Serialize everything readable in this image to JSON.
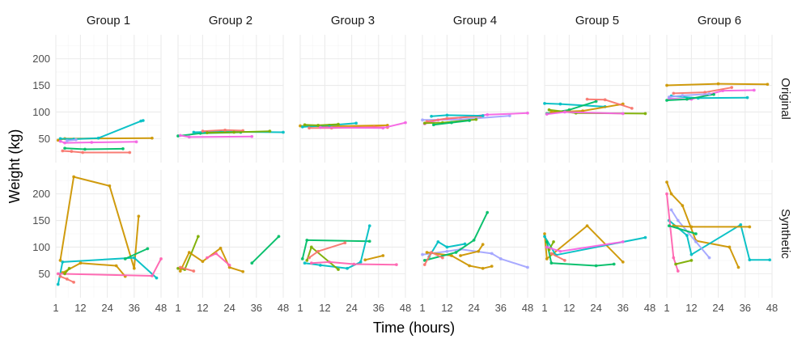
{
  "chart_data": {
    "type": "line",
    "title": "",
    "xlabel": "Time (hours)",
    "ylabel": "Weight (kg)",
    "x_ticks": [
      1,
      12,
      24,
      36,
      48
    ],
    "x_tick_labels": [
      "1",
      "12",
      "24",
      "36",
      "48"
    ],
    "xlim": [
      1,
      48
    ],
    "y_ticks": [
      50,
      100,
      150,
      200
    ],
    "y_tick_labels": [
      "50",
      "100",
      "150",
      "200"
    ],
    "ylim": [
      5,
      245
    ],
    "columns": [
      "Group 1",
      "Group 2",
      "Group 3",
      "Group 4",
      "Group 5",
      "Group 6"
    ],
    "rows": [
      "Original",
      "Synthetic"
    ],
    "series_colors": [
      "#f8766d",
      "#cd9600",
      "#7cae00",
      "#00be67",
      "#00bfc4",
      "#a3a5ff",
      "#f564e3",
      "#ff64b0"
    ],
    "panels": [
      {
        "row": "Original",
        "column": "Group 1",
        "series": [
          {
            "x": [
              2,
              5,
              44
            ],
            "y": [
              47,
              50,
              51
            ],
            "color": 1
          },
          {
            "x": [
              3,
              9,
              20,
              39,
              40
            ],
            "y": [
              50,
              49,
              51,
              83,
              84
            ],
            "color": 4
          },
          {
            "x": [
              4,
              8,
              13,
              34
            ],
            "y": [
              27,
              26,
              24,
              24
            ],
            "color": 0
          },
          {
            "x": [
              5,
              14,
              31
            ],
            "y": [
              32,
              30,
              31
            ],
            "color": 3
          },
          {
            "x": [
              3,
              5,
              17,
              37
            ],
            "y": [
              45,
              42,
              43,
              44
            ],
            "color": 6
          },
          {
            "x": [
              6,
              10
            ],
            "y": [
              46,
              48
            ],
            "color": 5
          }
        ]
      },
      {
        "row": "Original",
        "column": "Group 2",
        "series": [
          {
            "x": [
              1,
              11,
              29
            ],
            "y": [
              55,
              60,
              62
            ],
            "color": 3
          },
          {
            "x": [
              2,
              6,
              34
            ],
            "y": [
              56,
              53,
              54
            ],
            "color": 6
          },
          {
            "x": [
              8,
              20,
              48
            ],
            "y": [
              62,
              63,
              62
            ],
            "color": 4
          },
          {
            "x": [
              12,
              22,
              30
            ],
            "y": [
              64,
              66,
              65
            ],
            "color": 0
          },
          {
            "x": [
              14,
              26,
              42
            ],
            "y": [
              61,
              62,
              64
            ],
            "color": 2
          }
        ]
      },
      {
        "row": "Original",
        "column": "Group 3",
        "series": [
          {
            "x": [
              1,
              12,
              40
            ],
            "y": [
              74,
              73,
              75
            ],
            "color": 1
          },
          {
            "x": [
              2,
              14,
              26
            ],
            "y": [
              72,
              75,
              79
            ],
            "color": 4
          },
          {
            "x": [
              3,
              9,
              18
            ],
            "y": [
              76,
              75,
              77
            ],
            "color": 2
          },
          {
            "x": [
              5,
              15,
              34,
              40
            ],
            "y": [
              70,
              70,
              72,
              71
            ],
            "color": 0
          },
          {
            "x": [
              10,
              38,
              48
            ],
            "y": [
              71,
              70,
              80
            ],
            "color": 6
          }
        ]
      },
      {
        "row": "Original",
        "column": "Group 4",
        "series": [
          {
            "x": [
              1,
              18,
              40
            ],
            "y": [
              85,
              86,
              93
            ],
            "color": 5
          },
          {
            "x": [
              2,
              8,
              30,
              48
            ],
            "y": [
              78,
              85,
              95,
              98
            ],
            "color": 6
          },
          {
            "x": [
              3,
              12,
              27
            ],
            "y": [
              82,
              88,
              92
            ],
            "color": 0
          },
          {
            "x": [
              2,
              10,
              25
            ],
            "y": [
              79,
              80,
              86
            ],
            "color": 2
          },
          {
            "x": [
              5,
              12,
              28
            ],
            "y": [
              92,
              94,
              93
            ],
            "color": 4
          },
          {
            "x": [
              6,
              14,
              22
            ],
            "y": [
              76,
              80,
              84
            ],
            "color": 3
          }
        ]
      },
      {
        "row": "Original",
        "column": "Group 5",
        "series": [
          {
            "x": [
              1,
              8,
              28
            ],
            "y": [
              116,
              115,
              110
            ],
            "color": 4
          },
          {
            "x": [
              2,
              12,
              24
            ],
            "y": [
              97,
              104,
              120
            ],
            "color": 3
          },
          {
            "x": [
              4,
              18,
              36
            ],
            "y": [
              100,
              102,
              115
            ],
            "color": 1
          },
          {
            "x": [
              3,
              15,
              46
            ],
            "y": [
              104,
              98,
              97
            ],
            "color": 2
          },
          {
            "x": [
              20,
              28,
              40
            ],
            "y": [
              124,
              123,
              107
            ],
            "color": 0
          },
          {
            "x": [
              2,
              10,
              36
            ],
            "y": [
              96,
              100,
              97
            ],
            "color": 6
          }
        ]
      },
      {
        "row": "Original",
        "column": "Group 6",
        "series": [
          {
            "x": [
              1,
              24,
              46
            ],
            "y": [
              150,
              153,
              152
            ],
            "color": 1
          },
          {
            "x": [
              2,
              12,
              26,
              40
            ],
            "y": [
              125,
              124,
              140,
              141
            ],
            "color": 6
          },
          {
            "x": [
              3,
              15,
              37
            ],
            "y": [
              130,
              126,
              127
            ],
            "color": 4
          },
          {
            "x": [
              1,
              10,
              22
            ],
            "y": [
              122,
              124,
              133
            ],
            "color": 3
          },
          {
            "x": [
              4,
              18,
              30
            ],
            "y": [
              135,
              137,
              146
            ],
            "color": 0
          },
          {
            "x": [
              2,
              8,
              20
            ],
            "y": [
              128,
              131,
              134
            ],
            "color": 5
          }
        ]
      },
      {
        "row": "Synthetic",
        "column": "Group 1",
        "series": [
          {
            "x": [
              3,
              9,
              25,
              36,
              38
            ],
            "y": [
              75,
              232,
              215,
              60,
              158
            ],
            "color": 1
          },
          {
            "x": [
              2,
              4,
              36,
              46
            ],
            "y": [
              30,
              72,
              80,
              42
            ],
            "color": 4
          },
          {
            "x": [
              4,
              12,
              28,
              32
            ],
            "y": [
              52,
              70,
              65,
              45
            ],
            "color": 1
          },
          {
            "x": [
              3,
              6,
              9
            ],
            "y": [
              45,
              40,
              34
            ],
            "color": 0
          },
          {
            "x": [
              2,
              44,
              48
            ],
            "y": [
              50,
              46,
              78
            ],
            "color": 7
          },
          {
            "x": [
              32,
              42
            ],
            "y": [
              78,
              97
            ],
            "color": 3
          },
          {
            "x": [
              5,
              7
            ],
            "y": [
              50,
              60
            ],
            "color": 2
          }
        ]
      },
      {
        "row": "Synthetic",
        "column": "Group 2",
        "series": [
          {
            "x": [
              1,
              4,
              10
            ],
            "y": [
              60,
              58,
              120
            ],
            "color": 2
          },
          {
            "x": [
              2,
              6,
              12,
              20,
              24,
              30
            ],
            "y": [
              55,
              90,
              73,
              98,
              62,
              54
            ],
            "color": 1
          },
          {
            "x": [
              14,
              18,
              24
            ],
            "y": [
              80,
              88,
              66
            ],
            "color": 7
          },
          {
            "x": [
              34,
              46
            ],
            "y": [
              70,
              120
            ],
            "color": 3
          },
          {
            "x": [
              2,
              8
            ],
            "y": [
              62,
              55
            ],
            "color": 0
          }
        ]
      },
      {
        "row": "Synthetic",
        "column": "Group 3",
        "series": [
          {
            "x": [
              2,
              4,
              32
            ],
            "y": [
              78,
              113,
              111
            ],
            "color": 3
          },
          {
            "x": [
              3,
              10,
              22,
              28,
              32
            ],
            "y": [
              70,
              66,
              60,
              72,
              140
            ],
            "color": 4
          },
          {
            "x": [
              4,
              6,
              18
            ],
            "y": [
              75,
              100,
              58
            ],
            "color": 2
          },
          {
            "x": [
              5,
              9,
              21
            ],
            "y": [
              80,
              92,
              108
            ],
            "color": 0
          },
          {
            "x": [
              6,
              14,
              25,
              44
            ],
            "y": [
              70,
              72,
              68,
              67
            ],
            "color": 7
          },
          {
            "x": [
              30,
              38
            ],
            "y": [
              76,
              84
            ],
            "color": 1
          }
        ]
      },
      {
        "row": "Synthetic",
        "column": "Group 4",
        "series": [
          {
            "x": [
              1,
              12,
              18,
              32,
              36,
              48
            ],
            "y": [
              86,
              92,
              96,
              88,
              78,
              62
            ],
            "color": 5
          },
          {
            "x": [
              3,
              14,
              22,
              28,
              32
            ],
            "y": [
              90,
              84,
              65,
              60,
              64
            ],
            "color": 1
          },
          {
            "x": [
              2,
              16,
              24,
              30
            ],
            "y": [
              75,
              90,
              113,
              165
            ],
            "color": 3
          },
          {
            "x": [
              4,
              8,
              12,
              20
            ],
            "y": [
              82,
              110,
              100,
              106
            ],
            "color": 4
          },
          {
            "x": [
              2,
              5,
              10
            ],
            "y": [
              67,
              90,
              80
            ],
            "color": 0
          },
          {
            "x": [
              18,
              26,
              28
            ],
            "y": [
              84,
              92,
              105
            ],
            "color": 1
          }
        ]
      },
      {
        "row": "Synthetic",
        "column": "Group 5",
        "series": [
          {
            "x": [
              1,
              2,
              20,
              36
            ],
            "y": [
              125,
              78,
              140,
              72
            ],
            "color": 1
          },
          {
            "x": [
              1,
              6,
              46
            ],
            "y": [
              120,
              85,
              118
            ],
            "color": 4
          },
          {
            "x": [
              2,
              4,
              24,
              32
            ],
            "y": [
              110,
              70,
              65,
              68
            ],
            "color": 3
          },
          {
            "x": [
              3,
              5
            ],
            "y": [
              95,
              110
            ],
            "color": 2
          },
          {
            "x": [
              2,
              8,
              36
            ],
            "y": [
              100,
              92,
              110
            ],
            "color": 6
          },
          {
            "x": [
              4,
              10
            ],
            "y": [
              88,
              75
            ],
            "color": 0
          }
        ]
      },
      {
        "row": "Synthetic",
        "column": "Group 6",
        "series": [
          {
            "x": [
              1,
              3,
              8,
              14,
              29,
              33
            ],
            "y": [
              222,
              200,
              178,
              112,
              100,
              62
            ],
            "color": 1
          },
          {
            "x": [
              2,
              10,
              12,
              34,
              38,
              47
            ],
            "y": [
              150,
              122,
              86,
              142,
              76,
              76
            ],
            "color": 4
          },
          {
            "x": [
              3,
              6,
              14,
              20
            ],
            "y": [
              170,
              150,
              110,
              80
            ],
            "color": 5
          },
          {
            "x": [
              4,
              12,
              38
            ],
            "y": [
              140,
              138,
              138
            ],
            "color": 1
          },
          {
            "x": [
              1,
              4,
              6
            ],
            "y": [
              200,
              80,
              55
            ],
            "color": 7
          },
          {
            "x": [
              2,
              14
            ],
            "y": [
              140,
              125
            ],
            "color": 3
          },
          {
            "x": [
              5,
              12
            ],
            "y": [
              68,
              75
            ],
            "color": 2
          }
        ]
      }
    ]
  }
}
